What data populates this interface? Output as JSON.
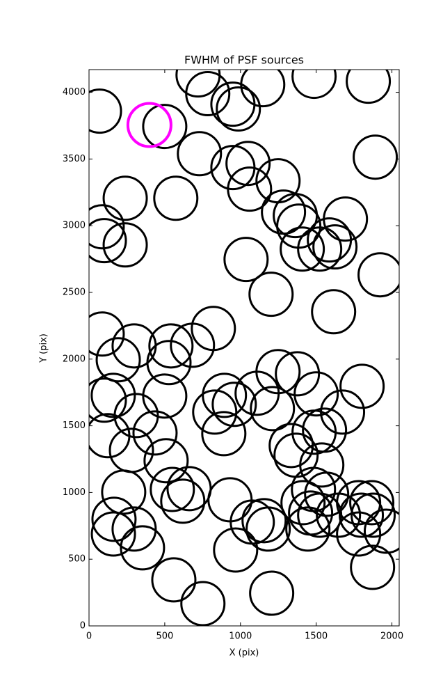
{
  "chart_data": {
    "type": "scatter",
    "title": "FWHM of PSF sources",
    "x_label": "X (pix)",
    "y_label": "Y (pix)",
    "xlim": [
      0,
      2048
    ],
    "ylim": [
      0,
      4170
    ],
    "xticks": [
      0,
      500,
      1000,
      1500,
      2000
    ],
    "yticks": [
      0,
      500,
      1000,
      1500,
      2000,
      2500,
      3000,
      3500,
      4000
    ],
    "series": [
      {
        "color": "#000000",
        "x": [
          69,
          500,
          784,
          720,
          950,
          986,
          1147,
          1486,
          1844,
          1890,
          729,
          950,
          1050,
          1248,
          1060,
          239,
          573,
          87,
          101,
          239,
          1284,
          1362,
          1385,
          1408,
          1587,
          1523,
          1624,
          1693,
          1037,
          1922,
          1202,
          1615,
          87,
          193,
          298,
          541,
          528,
          683,
          821,
          101,
          160,
          500,
          312,
          124,
          436,
          280,
          509,
          830,
          894,
          959,
          890,
          1110,
          1211,
          1248,
          1376,
          1500,
          1674,
          1803,
          1335,
          1367,
          1486,
          1555,
          1537,
          229,
          165,
          161,
          298,
          353,
          550,
          619,
          661,
          931,
          1078,
          1156,
          1183,
          968,
          1413,
          1482,
          1569,
          1445,
          1463,
          1523,
          1647,
          1780,
          1867,
          1798,
          1780,
          1876,
          1963,
          1872,
          560,
          752,
          1206
        ],
        "y": [
          3859,
          3744,
          3990,
          4130,
          3911,
          3875,
          4057,
          4120,
          4083,
          3514,
          3540,
          3436,
          3467,
          3337,
          3274,
          3206,
          3206,
          2992,
          2888,
          2856,
          3102,
          3076,
          2997,
          2825,
          2893,
          2825,
          2841,
          3050,
          2747,
          2632,
          2486,
          2355,
          2188,
          1995,
          2099,
          2099,
          1974,
          2104,
          2230,
          1692,
          1728,
          1723,
          1577,
          1426,
          1446,
          1316,
          1238,
          1603,
          1728,
          1661,
          1441,
          1744,
          1629,
          1906,
          1890,
          1739,
          1603,
          1796,
          1352,
          1279,
          1452,
          1467,
          1206,
          1003,
          799,
          689,
          726,
          585,
          1023,
          935,
          1029,
          945,
          778,
          789,
          726,
          569,
          924,
          1023,
          987,
          726,
          846,
          830,
          830,
          924,
          924,
          830,
          689,
          830,
          710,
          439,
          345,
          167,
          245
        ]
      },
      {
        "color": "#ff00ff",
        "x": [
          399
        ],
        "y": [
          3755
        ]
      }
    ]
  }
}
